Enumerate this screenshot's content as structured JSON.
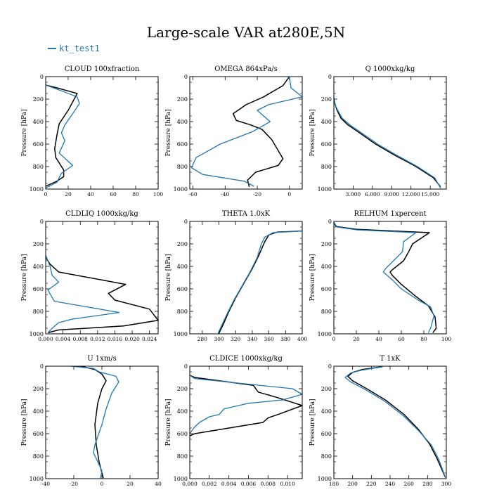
{
  "title": "Large-scale VAR at280E,5N",
  "legend": {
    "label": "kt_test1",
    "color": "#1f77b4"
  },
  "colors": {
    "control": "#000000",
    "test": "#1f77b4"
  },
  "chart_data": [
    {
      "type": "line",
      "title": "CLOUD  100xfraction",
      "ylabel": "Pressure [hPa]",
      "xlim": [
        0,
        100
      ],
      "ylim": [
        1000,
        0
      ],
      "xticks": [
        0,
        20,
        40,
        60,
        80,
        100
      ],
      "xticklabels": [
        "0",
        "20",
        "40",
        "60",
        "80",
        "100"
      ],
      "yticks": [
        0,
        200,
        400,
        600,
        800,
        1000
      ],
      "series": [
        {
          "color": "#000000",
          "x": [
            0,
            10,
            28,
            20,
            12,
            10,
            8,
            9,
            16,
            16,
            10,
            0
          ],
          "y": [
            75,
            100,
            150,
            300,
            420,
            520,
            640,
            720,
            830,
            890,
            930,
            975
          ]
        },
        {
          "color": "#1f77b4",
          "x": [
            0,
            15,
            28,
            30,
            24,
            17,
            14,
            17,
            12,
            24,
            14,
            10,
            0
          ],
          "y": [
            75,
            130,
            180,
            240,
            330,
            430,
            500,
            570,
            680,
            790,
            860,
            940,
            990
          ]
        }
      ]
    },
    {
      "type": "line",
      "title": "OMEGA  864xPa/s",
      "ylabel": "Pressure [hPa]",
      "xlim": [
        -62,
        8
      ],
      "ylim": [
        1000,
        0
      ],
      "xticks": [
        -60,
        -40,
        -20,
        0
      ],
      "xticklabels": [
        "-60",
        "-40",
        "-20",
        "0"
      ],
      "yticks": [
        0,
        200,
        400,
        600,
        800,
        1000
      ],
      "series": [
        {
          "color": "#000000",
          "x": [
            0,
            -4,
            -16,
            -27,
            -35,
            -33,
            -24,
            -17,
            -11,
            -4,
            -7,
            -21,
            -26,
            -25
          ],
          "y": [
            0,
            80,
            180,
            250,
            330,
            390,
            430,
            470,
            560,
            730,
            790,
            850,
            920,
            980
          ]
        },
        {
          "color": "#1f77b4",
          "x": [
            0,
            1,
            8,
            -13,
            -20,
            -12,
            -23,
            -43,
            -58,
            -61,
            -54,
            -28,
            -22
          ],
          "y": [
            0,
            100,
            180,
            250,
            300,
            400,
            490,
            600,
            720,
            810,
            870,
            930,
            975
          ]
        }
      ]
    },
    {
      "type": "line",
      "title": "Q  1000xkg/kg",
      "ylabel": "Pressure [hPa]",
      "xlim": [
        0,
        17500
      ],
      "ylim": [
        1000,
        0
      ],
      "xticks": [
        3000,
        6000,
        9000,
        12000,
        15000
      ],
      "xticklabels": [
        "3.000",
        "6.000",
        "9.000",
        "12.000",
        "15.000"
      ],
      "yticks": [
        0,
        200,
        400,
        600,
        800,
        1000
      ],
      "series": [
        {
          "color": "#000000",
          "x": [
            0,
            200,
            500,
            1100,
            2200,
            4000,
            6500,
            9500,
            12800,
            15500,
            16600
          ],
          "y": [
            190,
            250,
            300,
            370,
            430,
            500,
            600,
            700,
            800,
            900,
            980
          ]
        },
        {
          "color": "#1f77b4",
          "x": [
            0,
            200,
            600,
            1300,
            2500,
            4300,
            6800,
            9800,
            13000,
            15700,
            16600
          ],
          "y": [
            190,
            250,
            300,
            370,
            430,
            500,
            600,
            700,
            800,
            900,
            990
          ]
        }
      ]
    },
    {
      "type": "line",
      "title": "CLDLIQ  1000xkg/kg",
      "ylabel": "Pressure [hPa]",
      "xlim": [
        0,
        0.026
      ],
      "ylim": [
        1000,
        0
      ],
      "xticks": [
        0,
        0.004,
        0.008,
        0.012,
        0.016,
        0.02,
        0.024
      ],
      "xticklabels": [
        "0.000",
        "0.004",
        "0.008",
        "0.012",
        "0.016",
        "0.020",
        "0.024"
      ],
      "yticks": [
        0,
        200,
        400,
        600,
        800,
        1000
      ],
      "series": [
        {
          "color": "#000000",
          "x": [
            0,
            0.001,
            0.003,
            0.0185,
            0.0145,
            0.016,
            0.024,
            0.026,
            0.018,
            0.003,
            0.0005
          ],
          "y": [
            320,
            380,
            450,
            560,
            640,
            700,
            780,
            880,
            930,
            965,
            990
          ]
        },
        {
          "color": "#1f77b4",
          "x": [
            0,
            0.001,
            0.0015,
            0.003,
            0.0005,
            0.002,
            0.017,
            0.006,
            0.003,
            0.0015,
            0.0005
          ],
          "y": [
            300,
            400,
            480,
            540,
            610,
            710,
            810,
            870,
            900,
            950,
            990
          ]
        }
      ]
    },
    {
      "type": "line",
      "title": "THETA  1.0xK",
      "ylabel": "Pressure [hPa]",
      "xlim": [
        265,
        400
      ],
      "ylim": [
        1000,
        0
      ],
      "xticks": [
        280,
        300,
        320,
        340,
        360,
        380,
        400
      ],
      "xticklabels": [
        "280",
        "300",
        "320",
        "340",
        "360",
        "380",
        "400"
      ],
      "yticks": [
        0,
        200,
        400,
        600,
        800,
        1000
      ],
      "series": [
        {
          "color": "#000000",
          "x": [
            400,
            370,
            360,
            355,
            348,
            340,
            330,
            320,
            312,
            305,
            300
          ],
          "y": [
            85,
            95,
            120,
            180,
            300,
            420,
            550,
            680,
            800,
            920,
            995
          ]
        },
        {
          "color": "#1f77b4",
          "x": [
            400,
            365,
            355,
            351,
            346,
            338,
            328,
            318,
            310,
            303,
            299
          ],
          "y": [
            85,
            100,
            140,
            200,
            320,
            440,
            570,
            700,
            820,
            930,
            995
          ]
        }
      ]
    },
    {
      "type": "line",
      "title": "RELHUM  1xpercent",
      "ylabel": "Pressure [hPa]",
      "xlim": [
        0,
        100
      ],
      "ylim": [
        1000,
        0
      ],
      "xticks": [
        0,
        20,
        40,
        60,
        80,
        100
      ],
      "xticklabels": [
        "0",
        "20",
        "40",
        "60",
        "80",
        "100"
      ],
      "yticks": [
        0,
        200,
        400,
        600,
        800,
        1000
      ],
      "series": [
        {
          "color": "#000000",
          "x": [
            0,
            2,
            20,
            85,
            70,
            66,
            62,
            52,
            50,
            52,
            60,
            72,
            84,
            90,
            91,
            88
          ],
          "y": [
            10,
            45,
            70,
            100,
            200,
            280,
            350,
            430,
            450,
            480,
            560,
            660,
            750,
            850,
            950,
            990
          ]
        },
        {
          "color": "#1f77b4",
          "x": [
            0,
            3,
            20,
            73,
            62,
            61,
            55,
            46,
            44,
            52,
            60,
            75,
            86,
            89,
            86,
            84
          ],
          "y": [
            10,
            50,
            75,
            100,
            180,
            270,
            330,
            420,
            450,
            520,
            600,
            700,
            760,
            840,
            950,
            990
          ]
        }
      ]
    },
    {
      "type": "line",
      "title": "U  1xm/s",
      "ylabel": "Pressure [hPa]",
      "xlim": [
        -40,
        40
      ],
      "ylim": [
        1000,
        0
      ],
      "xticks": [
        -40,
        -20,
        0,
        20,
        40
      ],
      "xticklabels": [
        "-40",
        "-20",
        "0",
        "20",
        "40"
      ],
      "yticks": [
        0,
        200,
        400,
        600,
        800,
        1000
      ],
      "series": [
        {
          "color": "#000000",
          "x": [
            -15,
            -5,
            0,
            3,
            0,
            -3,
            -5,
            -4,
            -2,
            0,
            1
          ],
          "y": [
            0,
            30,
            70,
            130,
            200,
            330,
            520,
            700,
            850,
            950,
            995
          ]
        },
        {
          "color": "#1f77b4",
          "x": [
            -22,
            -6,
            -2,
            10,
            12,
            7,
            3,
            0,
            -5,
            -6,
            -3,
            0,
            -1
          ],
          "y": [
            0,
            20,
            50,
            90,
            140,
            240,
            380,
            520,
            700,
            770,
            850,
            930,
            995
          ]
        }
      ]
    },
    {
      "type": "line",
      "title": "CLDICE  1000xkg/kg",
      "ylabel": "Pressure [hPa]",
      "xlim": [
        0,
        0.0115
      ],
      "ylim": [
        1000,
        0
      ],
      "xticks": [
        0,
        0.002,
        0.004,
        0.006,
        0.008,
        0.01
      ],
      "xticklabels": [
        "0.000",
        "0.002",
        "0.004",
        "0.006",
        "0.008",
        "0.010"
      ],
      "yticks": [
        0,
        200,
        400,
        600,
        800,
        1000
      ],
      "series": [
        {
          "color": "#000000",
          "x": [
            0,
            0.0005,
            0.0065,
            0.007,
            0.009,
            0.0115,
            0.009,
            0.008,
            0.0075,
            0.0005,
            0
          ],
          "y": [
            80,
            100,
            170,
            230,
            280,
            350,
            430,
            460,
            500,
            600,
            620
          ]
        },
        {
          "color": "#1f77b4",
          "x": [
            0,
            0.0005,
            0.0105,
            0.0115,
            0.0095,
            0.006,
            0.0035,
            0.003,
            0.002,
            0.001,
            0.0005,
            0
          ],
          "y": [
            80,
            110,
            200,
            250,
            300,
            330,
            380,
            430,
            450,
            500,
            540,
            600
          ]
        }
      ]
    },
    {
      "type": "line",
      "title": "T  1xK",
      "ylabel": "Pressure [hPa]",
      "xlim": [
        180,
        300
      ],
      "ylim": [
        1000,
        0
      ],
      "xticks": [
        180,
        200,
        220,
        240,
        260,
        280,
        300
      ],
      "xticklabels": [
        "180",
        "200",
        "220",
        "240",
        "260",
        "280",
        "300"
      ],
      "yticks": [
        0,
        200,
        400,
        600,
        800,
        1000
      ],
      "series": [
        {
          "color": "#000000",
          "x": [
            232,
            210,
            200,
            195,
            200,
            215,
            235,
            255,
            270,
            282,
            290,
            299
          ],
          "y": [
            5,
            30,
            55,
            90,
            130,
            200,
            300,
            430,
            560,
            690,
            820,
            990
          ]
        },
        {
          "color": "#1f77b4",
          "x": [
            232,
            210,
            198,
            192,
            198,
            214,
            234,
            254,
            270,
            284,
            292,
            299
          ],
          "y": [
            5,
            35,
            60,
            100,
            140,
            210,
            310,
            440,
            570,
            700,
            830,
            990
          ]
        }
      ]
    }
  ]
}
